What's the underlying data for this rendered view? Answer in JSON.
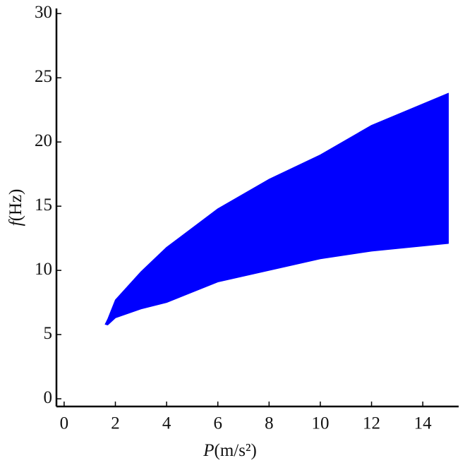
{
  "chart_data": {
    "type": "band",
    "xlabel": {
      "var": "P",
      "unit": "(m/s²)"
    },
    "ylabel": {
      "var": "f",
      "unit": "(Hz)"
    },
    "x": [
      1.6,
      1.7,
      2,
      3,
      4,
      6,
      8,
      10,
      12,
      15
    ],
    "upper": [
      5.8,
      6.2,
      7.7,
      9.9,
      11.8,
      14.8,
      17.1,
      19.0,
      21.3,
      23.8
    ],
    "lower": [
      5.8,
      5.75,
      6.3,
      7.0,
      7.5,
      9.1,
      10.0,
      10.9,
      11.5,
      12.1
    ],
    "color": "#0000ff",
    "xlim": [
      -0.3,
      15.4
    ],
    "xticks": [
      0,
      2,
      4,
      6,
      8,
      10,
      12,
      14
    ],
    "ylim": [
      -0.6,
      30.4
    ],
    "yticks": [
      0,
      5,
      10,
      15,
      20,
      25,
      30
    ]
  }
}
